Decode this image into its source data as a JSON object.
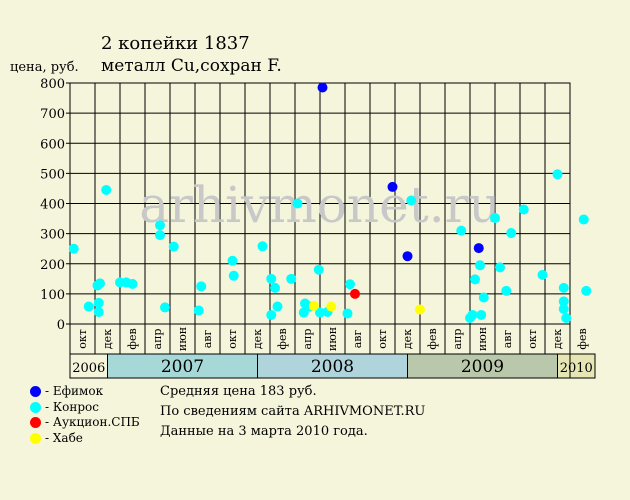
{
  "chart_data": {
    "type": "scatter",
    "title_line1": "2 копейки 1837",
    "title_line2": "металл Cu,сохран F.",
    "ylabel": "цена, руб.",
    "ylim": [
      0,
      800
    ],
    "yticks": [
      0,
      100,
      200,
      300,
      400,
      500,
      600,
      700,
      800
    ],
    "watermark": "arhivmonet.ru",
    "month_labels": [
      "окт",
      "дек",
      "фев",
      "апр",
      "июн",
      "авг",
      "окт",
      "дек",
      "фев",
      "апр",
      "июн",
      "авг",
      "окт",
      "дек",
      "фев",
      "апр",
      "июн",
      "авг",
      "окт",
      "дек",
      "фев"
    ],
    "years": [
      {
        "label": "2006",
        "color": "#f5f5dc"
      },
      {
        "label": "2007",
        "color": "#a6d8d8"
      },
      {
        "label": "2008",
        "color": "#b0d4dc"
      },
      {
        "label": "2009",
        "color": "#b9c8aa"
      },
      {
        "label": "2010",
        "color": "#e6e6b4"
      }
    ],
    "series": [
      {
        "name": "Ефимок",
        "color": "#0000ff",
        "points": [
          {
            "x": 20.2,
            "y": 785
          },
          {
            "x": 25.8,
            "y": 455
          },
          {
            "x": 27.0,
            "y": 225
          },
          {
            "x": 32.7,
            "y": 252
          }
        ]
      },
      {
        "name": "Конрос",
        "color": "#00ffff",
        "points": [
          {
            "x": 0.3,
            "y": 250
          },
          {
            "x": 1.5,
            "y": 58
          },
          {
            "x": 2.2,
            "y": 128
          },
          {
            "x": 2.4,
            "y": 135
          },
          {
            "x": 2.3,
            "y": 70
          },
          {
            "x": 2.3,
            "y": 40
          },
          {
            "x": 2.9,
            "y": 445
          },
          {
            "x": 4.0,
            "y": 138
          },
          {
            "x": 4.5,
            "y": 138
          },
          {
            "x": 5.0,
            "y": 133
          },
          {
            "x": 7.2,
            "y": 328
          },
          {
            "x": 7.2,
            "y": 295
          },
          {
            "x": 7.6,
            "y": 55
          },
          {
            "x": 8.3,
            "y": 257
          },
          {
            "x": 10.3,
            "y": 45
          },
          {
            "x": 10.5,
            "y": 125
          },
          {
            "x": 13.0,
            "y": 210
          },
          {
            "x": 13.1,
            "y": 160
          },
          {
            "x": 15.4,
            "y": 258
          },
          {
            "x": 16.1,
            "y": 30
          },
          {
            "x": 16.1,
            "y": 150
          },
          {
            "x": 16.4,
            "y": 120
          },
          {
            "x": 16.6,
            "y": 58
          },
          {
            "x": 17.7,
            "y": 150
          },
          {
            "x": 18.2,
            "y": 400
          },
          {
            "x": 18.7,
            "y": 38
          },
          {
            "x": 18.8,
            "y": 68
          },
          {
            "x": 19.2,
            "y": 58
          },
          {
            "x": 19.9,
            "y": 180
          },
          {
            "x": 20.0,
            "y": 38
          },
          {
            "x": 20.6,
            "y": 40
          },
          {
            "x": 22.2,
            "y": 35
          },
          {
            "x": 22.4,
            "y": 132
          },
          {
            "x": 27.3,
            "y": 410
          },
          {
            "x": 31.3,
            "y": 310
          },
          {
            "x": 32.0,
            "y": 20
          },
          {
            "x": 32.2,
            "y": 30
          },
          {
            "x": 32.4,
            "y": 148
          },
          {
            "x": 32.8,
            "y": 195
          },
          {
            "x": 32.9,
            "y": 30
          },
          {
            "x": 33.1,
            "y": 88
          },
          {
            "x": 34.0,
            "y": 352
          },
          {
            "x": 34.4,
            "y": 188
          },
          {
            "x": 34.9,
            "y": 110
          },
          {
            "x": 35.3,
            "y": 302
          },
          {
            "x": 36.3,
            "y": 380
          },
          {
            "x": 37.8,
            "y": 163
          },
          {
            "x": 39.0,
            "y": 497
          },
          {
            "x": 39.5,
            "y": 120
          },
          {
            "x": 39.5,
            "y": 75
          },
          {
            "x": 39.5,
            "y": 50
          },
          {
            "x": 39.7,
            "y": 20
          },
          {
            "x": 41.1,
            "y": 347
          },
          {
            "x": 41.3,
            "y": 110
          }
        ]
      },
      {
        "name": "Аукцион.СПБ",
        "color": "#ff0000",
        "points": [
          {
            "x": 22.8,
            "y": 100
          }
        ]
      },
      {
        "name": "Хабе",
        "color": "#ffff00",
        "points": [
          {
            "x": 19.5,
            "y": 60
          },
          {
            "x": 20.9,
            "y": 58
          },
          {
            "x": 28.0,
            "y": 48
          }
        ]
      }
    ]
  },
  "stats": {
    "average": "Средняя цена 183 руб.",
    "source": "По  сведениям сайта ARHIVMONET.RU",
    "date": "Данные на 3 марта 2010 года."
  },
  "legend": [
    {
      "label": "- Ефимок",
      "color": "#0000ff"
    },
    {
      "label": "- Конрос",
      "color": "#00ffff"
    },
    {
      "label": "- Аукцион.СПБ",
      "color": "#ff0000"
    },
    {
      "label": "- Хабе",
      "color": "#ffff00"
    }
  ]
}
